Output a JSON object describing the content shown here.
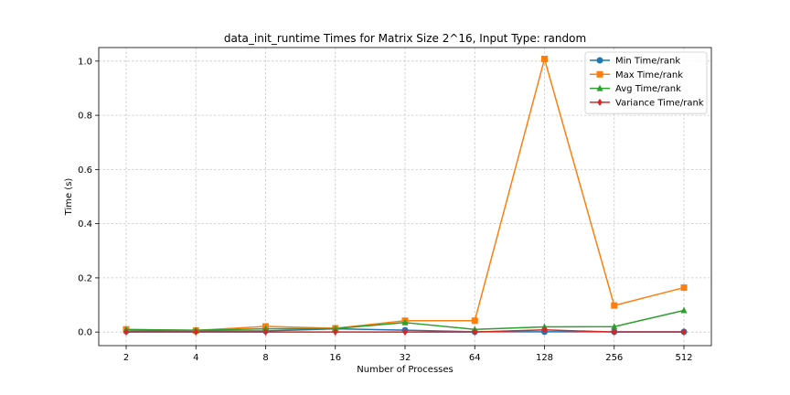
{
  "chart_data": {
    "type": "line",
    "title": "data_init_runtime Times for Matrix Size 2^16, Input Type: random",
    "xlabel": "Number of Processes",
    "ylabel": "Time (s)",
    "categories": [
      "2",
      "4",
      "8",
      "16",
      "32",
      "64",
      "128",
      "256",
      "512"
    ],
    "ylim": [
      -0.05,
      1.05
    ],
    "yticks": [
      0.0,
      0.2,
      0.4,
      0.6,
      0.8,
      1.0
    ],
    "ytick_labels": [
      "0.0",
      "0.2",
      "0.4",
      "0.6",
      "0.8",
      "1.0"
    ],
    "grid": true,
    "legend_position": "top-right",
    "series": [
      {
        "name": "Min Time/rank",
        "color": "#1f77b4",
        "marker": "circle",
        "values": [
          0.003,
          0.004,
          0.004,
          0.012,
          0.007,
          0.001,
          0.001,
          0.001,
          0.001
        ]
      },
      {
        "name": "Max Time/rank",
        "color": "#ff7f0e",
        "marker": "square",
        "values": [
          0.01,
          0.006,
          0.021,
          0.014,
          0.042,
          0.042,
          1.008,
          0.098,
          0.164
        ]
      },
      {
        "name": "Avg Time/rank",
        "color": "#2ca02c",
        "marker": "triangle",
        "values": [
          0.009,
          0.007,
          0.012,
          0.013,
          0.035,
          0.01,
          0.019,
          0.02,
          0.08
        ]
      },
      {
        "name": "Variance Time/rank",
        "color": "#d62728",
        "marker": "diamond",
        "values": [
          0.0,
          0.0,
          0.0,
          0.0,
          0.0,
          0.0,
          0.008,
          0.0,
          0.0
        ]
      }
    ]
  }
}
